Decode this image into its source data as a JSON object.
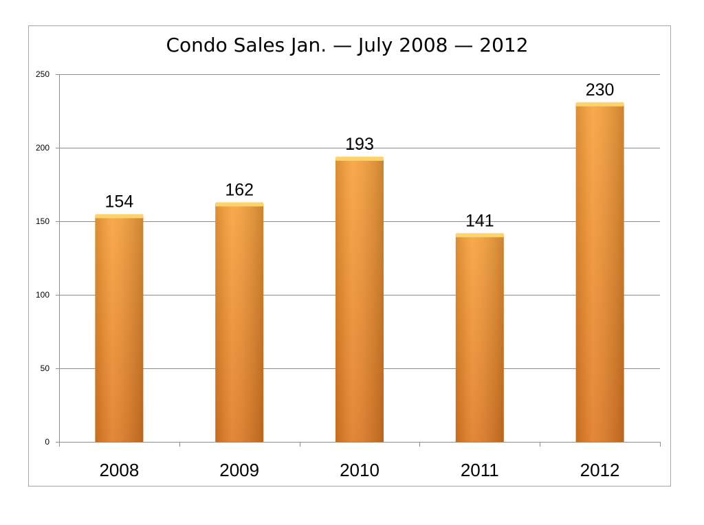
{
  "chart_data": {
    "type": "bar",
    "title": "Condo Sales Jan. — July 2008 — 2012",
    "xlabel": "",
    "ylabel": "",
    "categories": [
      "2008",
      "2009",
      "2010",
      "2011",
      "2012"
    ],
    "values": [
      154,
      162,
      193,
      141,
      230
    ],
    "data_labels": [
      "154",
      "162",
      "193",
      "141",
      "230"
    ],
    "ylim": [
      0,
      250
    ],
    "y_ticks": [
      0,
      50,
      100,
      150,
      200,
      250
    ],
    "y_tick_labels": [
      "0",
      "50",
      "100",
      "150",
      "200",
      "250"
    ],
    "grid": true,
    "legend": "none",
    "colors": {
      "bar_top": "#f9a13a",
      "bar_bottom": "#e07a22",
      "bar_cap": "#ffd36b",
      "grid": "#8c8c8c",
      "frame": "#a6a6a6"
    }
  }
}
